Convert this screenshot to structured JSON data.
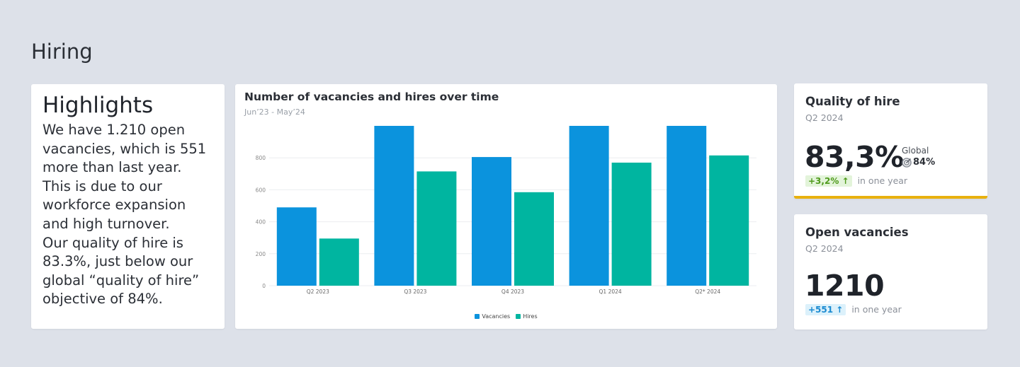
{
  "page": {
    "title": "Hiring"
  },
  "highlights": {
    "title": "Highlights",
    "paragraph1": "We have 1.210 open vacancies, which is 551 more than last year. This is due to our workforce expansion and high turnover.",
    "paragraph2": "Our quality of hire is 83.3%, just below our global “quality of hire” objective of 84%."
  },
  "chart": {
    "title": "Number of vacancies and hires over time",
    "subtitle": "Jun’23 - May’24"
  },
  "chart_data": {
    "type": "bar",
    "categories": [
      "Q2 2023",
      "Q3 2023",
      "Q4 2023",
      "Q1 2024",
      "Q2* 2024"
    ],
    "series": [
      {
        "name": "Vacancies",
        "color": "#0b93dd",
        "values": [
          490,
          1000,
          805,
          1000,
          1000
        ]
      },
      {
        "name": "Hires",
        "color": "#00b5a0",
        "values": [
          295,
          715,
          585,
          770,
          815
        ]
      }
    ],
    "yticks": [
      0,
      200,
      400,
      600,
      800
    ],
    "ylim": [
      0,
      1000
    ],
    "grid": true,
    "legend_position": "bottom"
  },
  "quality": {
    "title": "Quality of hire",
    "period": "Q2 2024",
    "value": "83,3%",
    "delta": "+3,2% ↑",
    "delta_text": "in one year",
    "global_label": "Global",
    "global_value": "84%",
    "accent_color": "#e8b10e"
  },
  "vacancies": {
    "title": "Open vacancies",
    "period": "Q2 2024",
    "value": "1210",
    "delta": "+551 ↑",
    "delta_text": "in one year"
  }
}
